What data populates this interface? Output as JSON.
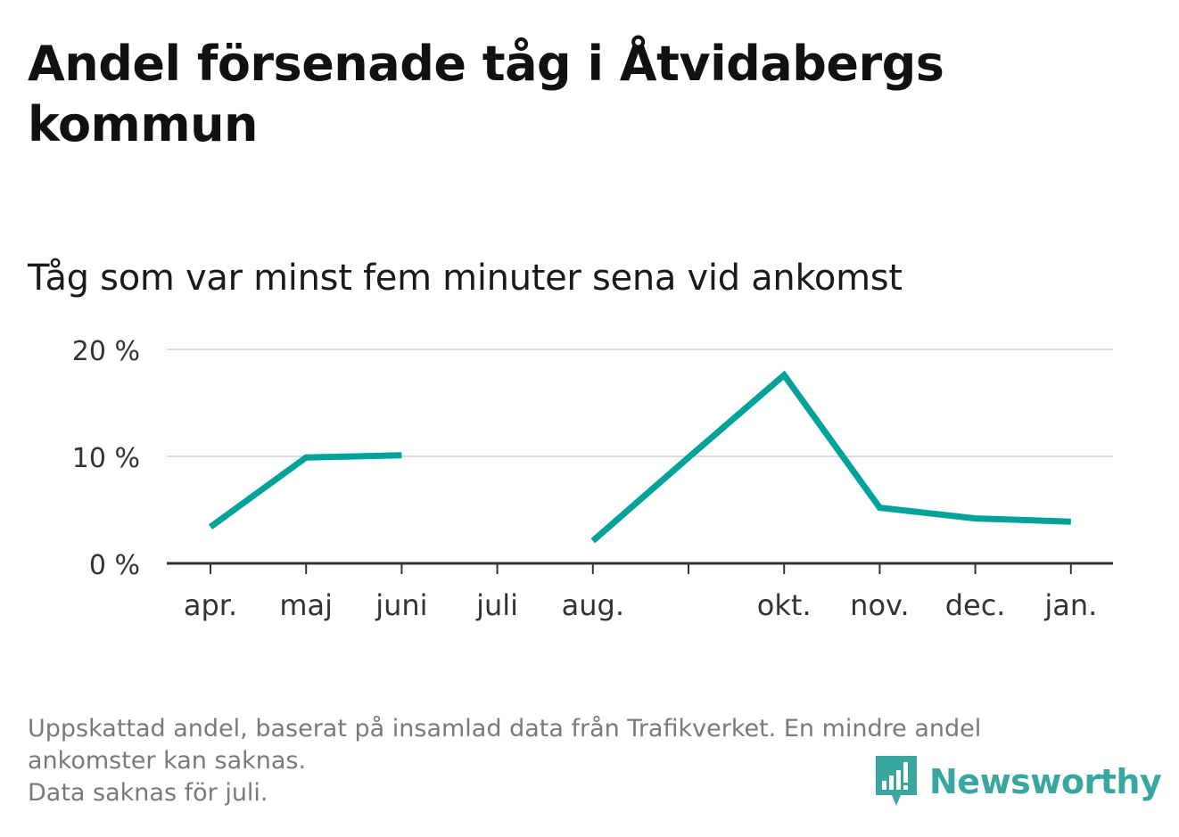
{
  "title": "Andel försenade tåg i Åtvidabergs kommun",
  "subtitle": "Tåg som var minst fem minuter sena vid ankomst",
  "footer": {
    "line1": "Uppskattad andel, baserat på insamlad data från Trafikverket. En mindre andel",
    "line2": "ankomster kan saknas.",
    "line3": "Data saknas för juli."
  },
  "logo": {
    "text": "Newsworthy",
    "icon": "newsworthy-bar-chart-icon"
  },
  "colors": {
    "line": "#00a39a",
    "grid": "#dddddd",
    "axis": "#333333",
    "logo": "#3aa6a0"
  },
  "chart_data": {
    "type": "line",
    "categories": [
      "apr.",
      "maj",
      "juni",
      "juli",
      "aug.",
      "",
      "okt.",
      "nov.",
      "dec.",
      "jan."
    ],
    "series": [
      {
        "values": [
          3.4,
          9.9,
          10.1,
          null,
          2.1,
          9.9,
          17.6,
          5.2,
          4.2,
          3.9
        ]
      }
    ],
    "ylim": [
      0,
      20
    ],
    "yticks": [
      {
        "value": 0,
        "label": "0 %"
      },
      {
        "value": 10,
        "label": "10 %"
      },
      {
        "value": 20,
        "label": "20 %"
      }
    ],
    "grid": true,
    "legend": "none"
  }
}
